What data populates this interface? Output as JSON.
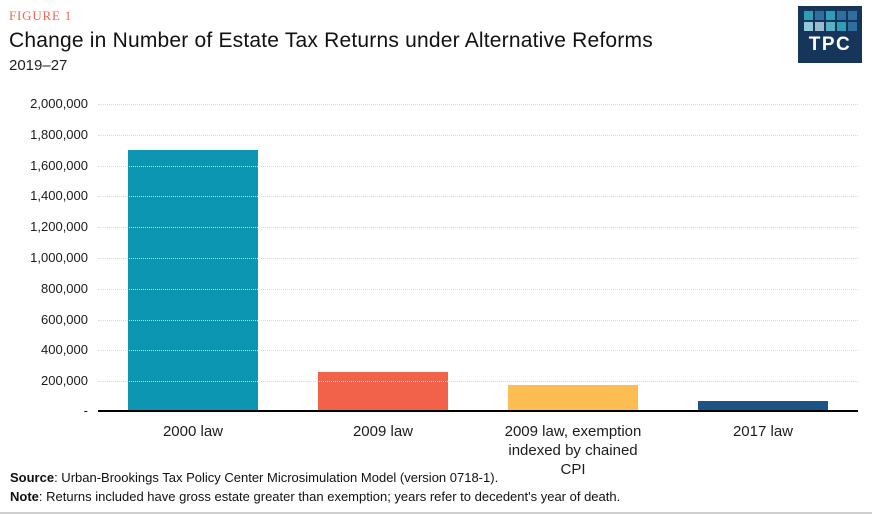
{
  "figure_label": "FIGURE 1",
  "title": "Change in Number of Estate Tax Returns under Alternative Reforms",
  "subtitle": "2019–27",
  "logo": {
    "text": "TPC",
    "bg_color": "#15365a",
    "grid_colors": [
      [
        "#2f9db6",
        "#2f6f9f",
        "#2f9db6",
        "#2f6f9f",
        "#2f6f9f"
      ],
      [
        "#8fcbd7",
        "#9db9cf",
        "#57b0c4",
        "#2f9db6",
        "#2f6f9f"
      ]
    ]
  },
  "chart_data": {
    "type": "bar",
    "title": "Change in Number of Estate Tax Returns under Alternative Reforms",
    "subtitle": "2019–27",
    "categories": [
      "2000 law",
      "2009 law",
      "2009 law, exemption indexed by chained CPI",
      "2017 law"
    ],
    "values": [
      1690000,
      245000,
      165000,
      60000
    ],
    "bar_colors": [
      "#0d96b1",
      "#f2614a",
      "#fcbd53",
      "#1d5486"
    ],
    "xlabel": "",
    "ylabel": "",
    "ylim": [
      0,
      2000000
    ],
    "ytick_step": 200000,
    "ytick_labels": [
      "2,000,000",
      "1,800,000",
      "1,600,000",
      "1,400,000",
      "1,200,000",
      "1,000,000",
      "800,000",
      "600,000",
      "400,000",
      "200,000"
    ],
    "zero_label": "-",
    "grid": "horizontal dotted",
    "legend": "none"
  },
  "footer": {
    "source_label": "Source",
    "source_text": ": Urban-Brookings Tax Policy Center Microsimulation Model (version 0718-1).",
    "note_label": "Note",
    "note_text": ": Returns included have gross estate greater than exemption; years refer to decedent's year of death."
  }
}
